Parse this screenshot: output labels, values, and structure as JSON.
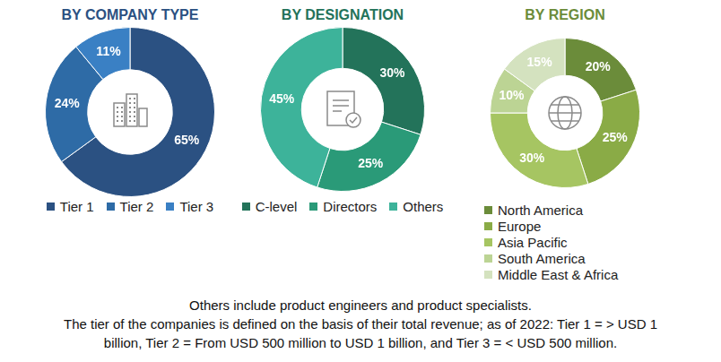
{
  "chart_data": [
    {
      "type": "doughnut",
      "title": "BY COMPANY TYPE",
      "categories": [
        "Tier 1",
        "Tier 2",
        "Tier 3"
      ],
      "values": [
        65,
        24,
        11
      ],
      "value_labels": [
        "65%",
        "24%",
        "11%"
      ],
      "colors": [
        "#2b5182",
        "#2e6ba6",
        "#3a80c4"
      ],
      "data_labels": true,
      "legend": "bottom"
    },
    {
      "type": "doughnut",
      "title": "BY DESIGNATION",
      "categories": [
        "C-level",
        "Directors",
        "Others"
      ],
      "values": [
        30,
        25,
        45
      ],
      "value_labels": [
        "30%",
        "25%",
        "45%"
      ],
      "colors": [
        "#23735a",
        "#2a9a78",
        "#3db39a"
      ],
      "data_labels": true,
      "legend": "bottom"
    },
    {
      "type": "doughnut",
      "title": "BY REGION",
      "categories": [
        "North America",
        "Europe",
        "Asia Pacific",
        "South America",
        "Middle East & Africa"
      ],
      "values": [
        20,
        25,
        30,
        10,
        15
      ],
      "value_labels": [
        "20%",
        "25%",
        "30%",
        "10%",
        "15%"
      ],
      "colors": [
        "#6b8c3a",
        "#8aab46",
        "#a6c562",
        "#bcd494",
        "#d4e2bf"
      ],
      "data_labels": true,
      "legend": "bottom"
    }
  ],
  "notes": [
    "Others include product engineers and product specialists.",
    "The tier of the companies is defined on the basis of their total revenue; as of 2022: Tier 1 = > USD 1",
    "billion, Tier 2 = From USD 500 million to USD 1 billion, and Tier 3 = < USD 500 million."
  ]
}
